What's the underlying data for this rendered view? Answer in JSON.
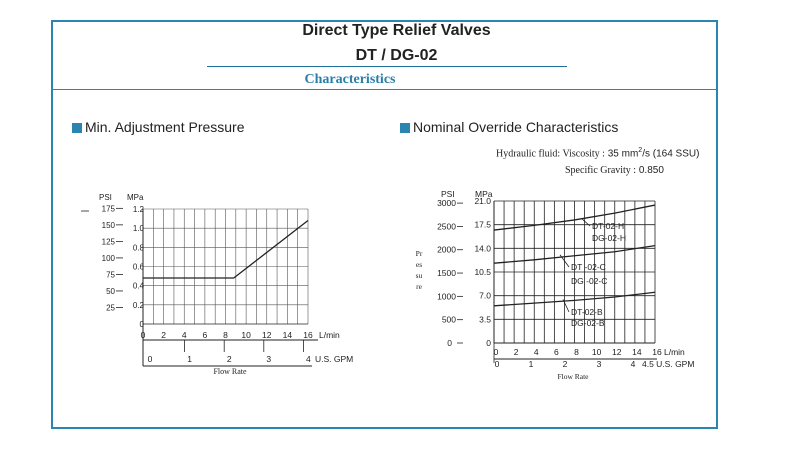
{
  "page": {
    "title": "Direct Type Relief Valves",
    "model": "DT / DG-02",
    "section": "Characteristics",
    "colors": {
      "accent": "#2a86b0",
      "line": "#222222"
    }
  },
  "left_panel": {
    "heading": "Min. Adjustment Pressure",
    "bullet_icon": "square-bullet-icon"
  },
  "right_panel": {
    "heading": "Nominal Override Characteristics",
    "bullet_icon": "square-bullet-icon",
    "fluid_label": "Hydraulic fluid: Viscosity :",
    "viscosity_value": "35 mm",
    "viscosity_exp": "2",
    "viscosity_unit": "/s (164 SSU)",
    "gravity_label": "Specific Gravity :",
    "gravity_value": "0.850"
  },
  "chart_data": [
    {
      "type": "line",
      "title": "Min. Adjustment Pressure",
      "xlabel": "Flow Rate",
      "psi_label": "PSI",
      "mpa_label": "MPa",
      "x_unit": "L/min",
      "gpm_unit": "U.S. GPM",
      "xlim": [
        0,
        16
      ],
      "ylim": [
        0,
        1.2
      ],
      "x_ticks": [
        "0",
        "2",
        "4",
        "6",
        "8",
        "10",
        "12",
        "14",
        "16"
      ],
      "gpm_ticks": [
        "0",
        "1",
        "2",
        "3",
        "4"
      ],
      "mpa_ticks": [
        "0",
        "0.2",
        "0.4",
        "0.6",
        "0.8",
        "1.0",
        "1.2"
      ],
      "psi_ticks": [
        "25",
        "50",
        "75",
        "100",
        "125",
        "150",
        "175"
      ],
      "series": [
        {
          "name": "min adjustment pressure",
          "x": [
            0,
            8.8,
            16
          ],
          "y": [
            0.48,
            0.48,
            1.08
          ]
        }
      ]
    },
    {
      "type": "line",
      "title": "Nominal Override Characteristics",
      "xlabel": "Flow Rate",
      "ylabel": "Pressure",
      "psi_label": "PSI",
      "mpa_label": "MPa",
      "x_unit": "L/min",
      "gpm_unit": "4.5 U.S. GPM",
      "xlim": [
        0,
        16
      ],
      "ylim": [
        0,
        21
      ],
      "x_ticks": [
        "0",
        "2",
        "4",
        "6",
        "8",
        "10",
        "12",
        "14",
        "16"
      ],
      "gpm_ticks": [
        "0",
        "1",
        "2",
        "3",
        "4"
      ],
      "mpa_ticks": [
        "0",
        "3.5",
        "7.0",
        "10.5",
        "14.0",
        "17.5",
        "21.0"
      ],
      "psi_ticks": [
        "500",
        "1000",
        "1500",
        "2000",
        "2500",
        "3000"
      ],
      "series": [
        {
          "name": "DT-02-H / DG-02-H",
          "label_a": "DT-02-H",
          "label_b": "DG-02-H",
          "x": [
            0,
            4,
            8,
            12,
            16
          ],
          "y": [
            16.7,
            17.4,
            18.2,
            19.2,
            20.4
          ]
        },
        {
          "name": "DT-02-C / DG-02-C",
          "label_a": "DT -02-C",
          "label_b": "DG -02-C",
          "x": [
            0,
            4,
            8,
            12,
            16
          ],
          "y": [
            11.8,
            12.3,
            12.9,
            13.5,
            14.4
          ]
        },
        {
          "name": "DT-02-B / DG-02-B",
          "label_a": "DT-02-B",
          "label_b": "DG-02-B",
          "x": [
            0,
            4,
            8,
            12,
            16
          ],
          "y": [
            5.5,
            5.9,
            6.3,
            6.8,
            7.5
          ]
        }
      ]
    }
  ]
}
